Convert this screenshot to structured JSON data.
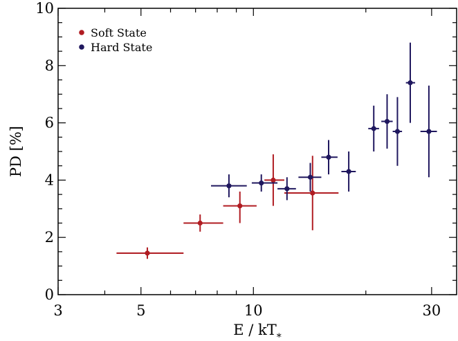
{
  "chart_data": {
    "type": "scatter",
    "title": "",
    "xlabel": "E / kT*",
    "ylabel": "PD [%]",
    "xscale": "log",
    "xlim": [
      3,
      35
    ],
    "ylim": [
      0,
      10
    ],
    "x_ticks": [
      3,
      5,
      10,
      30
    ],
    "y_ticks": [
      0,
      2,
      4,
      6,
      8,
      10
    ],
    "grid": false,
    "legend_position": "top-left",
    "series": [
      {
        "name": "Soft State",
        "color": "#b01c22",
        "points": [
          {
            "x": 5.2,
            "y": 1.45,
            "x_lo": 4.3,
            "x_hi": 6.5,
            "y_lo": 1.25,
            "y_hi": 1.65
          },
          {
            "x": 7.2,
            "y": 2.5,
            "x_lo": 6.5,
            "x_hi": 8.3,
            "y_lo": 2.2,
            "y_hi": 2.8
          },
          {
            "x": 9.2,
            "y": 3.1,
            "x_lo": 8.3,
            "x_hi": 10.2,
            "y_lo": 2.5,
            "y_hi": 3.6
          },
          {
            "x": 11.3,
            "y": 4.0,
            "x_lo": 10.7,
            "x_hi": 12.1,
            "y_lo": 3.1,
            "y_hi": 4.9
          },
          {
            "x": 14.4,
            "y": 3.55,
            "x_lo": 12.1,
            "x_hi": 16.9,
            "y_lo": 2.25,
            "y_hi": 4.85
          }
        ]
      },
      {
        "name": "Hard State",
        "color": "#1f175e",
        "points": [
          {
            "x": 8.6,
            "y": 3.8,
            "x_lo": 7.7,
            "x_hi": 9.6,
            "y_lo": 3.4,
            "y_hi": 4.2
          },
          {
            "x": 10.5,
            "y": 3.9,
            "x_lo": 9.9,
            "x_hi": 11.6,
            "y_lo": 3.6,
            "y_hi": 4.2
          },
          {
            "x": 12.3,
            "y": 3.7,
            "x_lo": 11.6,
            "x_hi": 13.0,
            "y_lo": 3.3,
            "y_hi": 4.1
          },
          {
            "x": 14.2,
            "y": 4.1,
            "x_lo": 13.2,
            "x_hi": 15.2,
            "y_lo": 3.6,
            "y_hi": 4.6
          },
          {
            "x": 15.9,
            "y": 4.8,
            "x_lo": 15.2,
            "x_hi": 16.8,
            "y_lo": 4.2,
            "y_hi": 5.4
          },
          {
            "x": 18.0,
            "y": 4.3,
            "x_lo": 17.2,
            "x_hi": 18.8,
            "y_lo": 3.6,
            "y_hi": 5.0
          },
          {
            "x": 21.0,
            "y": 5.8,
            "x_lo": 20.3,
            "x_hi": 21.7,
            "y_lo": 5.0,
            "y_hi": 6.6
          },
          {
            "x": 22.8,
            "y": 6.05,
            "x_lo": 22.0,
            "x_hi": 23.6,
            "y_lo": 5.1,
            "y_hi": 7.0
          },
          {
            "x": 24.3,
            "y": 5.7,
            "x_lo": 23.6,
            "x_hi": 25.0,
            "y_lo": 4.5,
            "y_hi": 6.9
          },
          {
            "x": 26.3,
            "y": 7.4,
            "x_lo": 25.6,
            "x_hi": 27.1,
            "y_lo": 6.0,
            "y_hi": 8.8
          },
          {
            "x": 29.5,
            "y": 5.7,
            "x_lo": 28.0,
            "x_hi": 31.0,
            "y_lo": 4.1,
            "y_hi": 7.3
          }
        ]
      }
    ]
  }
}
